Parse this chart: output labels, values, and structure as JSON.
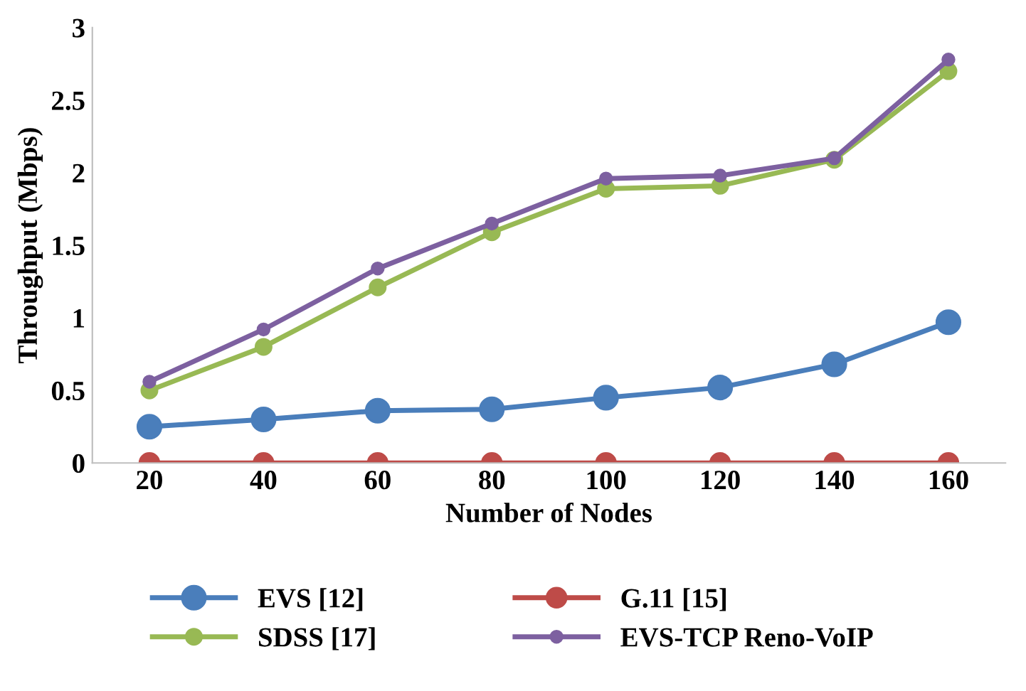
{
  "chart_data": {
    "type": "line",
    "xlabel": "Number of Nodes",
    "ylabel": "Throughput (Mbps)",
    "categories": [
      "20",
      "40",
      "60",
      "80",
      "100",
      "120",
      "140",
      "160"
    ],
    "series": [
      {
        "name": "EVS [12]",
        "color": "#4a7ebb",
        "values": [
          0.25,
          0.3,
          0.36,
          0.37,
          0.45,
          0.52,
          0.68,
          0.97
        ]
      },
      {
        "name": "G.11 [15]",
        "color": "#be4b48",
        "values": [
          0,
          0,
          0,
          0,
          0,
          0,
          0,
          0
        ]
      },
      {
        "name": "SDSS [17]",
        "color": "#98b954",
        "values": [
          0.5,
          0.8,
          1.21,
          1.59,
          1.89,
          1.91,
          2.09,
          2.7
        ]
      },
      {
        "name": "EVS-TCP Reno-VoIP",
        "color": "#7d60a0",
        "values": [
          0.56,
          0.92,
          1.34,
          1.65,
          1.96,
          1.98,
          2.1,
          2.78
        ]
      }
    ],
    "ylim": [
      0,
      3
    ],
    "yticks": [
      0,
      0.5,
      1,
      1.5,
      2,
      2.5,
      3
    ],
    "legend": "bottom",
    "marker": "circle",
    "line_style": "solid"
  }
}
